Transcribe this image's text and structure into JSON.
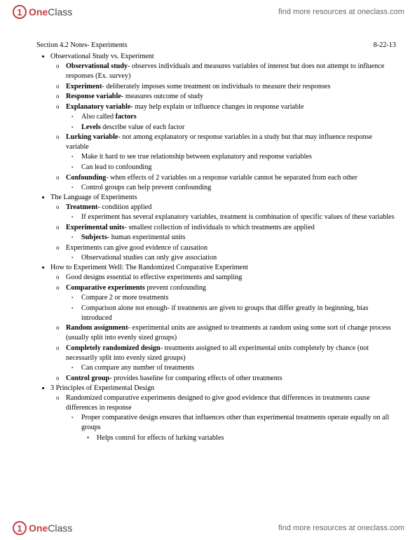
{
  "brand": {
    "logoOne": "One",
    "logoClass": "Class",
    "logoInitial": "1"
  },
  "headerLink": "find more resources at oneclass.com",
  "title": "Section 4.2 Notes- Experiments",
  "date": "8-22-13",
  "bullets": {
    "b1": "Observational Study vs. Experiment",
    "b1_1a": "Observational study",
    "b1_1b": "- observes individuals and measures variables of interest but does not attempt to influence responses (Ex. survey)",
    "b1_2a": "Experiment",
    "b1_2b": "- deliberately imposes some treatment on individuals to measure their responses",
    "b1_3a": "Response variable",
    "b1_3b": "- measures outcome of study",
    "b1_4a": "Explanatory variable",
    "b1_4b": "- may help explain or influence changes in response variable",
    "b1_4_1a": "Also called ",
    "b1_4_1b": "factors",
    "b1_4_2a": "Levels",
    "b1_4_2b": " describe value of each factor",
    "b1_5a": "Lurking variable",
    "b1_5b": "- not among explanatory or response variables in a study but that may influence response variable",
    "b1_5_1": "Make it hard to see true relationship between explanatory and response variables",
    "b1_5_2": "Can lead to confounding",
    "b1_6a": "Confounding",
    "b1_6b": "- when effects of 2 variables on a response variable cannot be separated from each other",
    "b1_6_1": "Control groups can help prevent confounding",
    "b2": "The Language of Experiments",
    "b2_1a": "Treatment",
    "b2_1b": "- condition applied",
    "b2_1_1": "If experiment has several explanatory variables, treatment is combination of specific values of these variables",
    "b2_2a": "Experimental units",
    "b2_2b": "- smallest collection of individuals to which treatments are applied",
    "b2_2_1a": "Subjects",
    "b2_2_1b": "- human experimental units",
    "b2_3": "Experiments can give good evidence of causation",
    "b2_3_1": "Observational studies can only give association",
    "b3": "How to Experiment Well: The Randomized Comparative Experiment",
    "b3_1": "Good designs essential to effective experiments and sampling",
    "b3_2a": "Comparative experiments",
    "b3_2b": " prevent confounding",
    "b3_2_1": "Compare 2 or more treatments",
    "b3_2_2": "Comparison alone not enough- if treatments are given to groups that differ greatly in beginning, bias introduced",
    "b3_3a": "Random assignment",
    "b3_3b": "- experimental units are assigned to treatments at random using some sort of change process (usually split into evenly sized groups)",
    "b3_4a": "Completely randomized design",
    "b3_4b": "- treatments assigned to all experimental units completely by chance (not necessarily split into evenly sized groups)",
    "b3_4_1": "Can compare any number of treatments",
    "b3_5a": "Control group",
    "b3_5b": "- provides baseline for comparing effects of other treatments",
    "b4": "3 Principles of Experimental Design",
    "b4_1": "Randomized comparative experiments designed to give good evidence that differences in treatments cause differences in response",
    "b4_1_1": "Proper comparative design ensures that influences other than experimental treatments operate equally on all groups",
    "b4_1_1_1": "Helps control for effects of lurking variables"
  },
  "colors": {
    "brand": "#c73d3d",
    "text": "#000000",
    "link": "#666666",
    "bg": "#ffffff"
  }
}
